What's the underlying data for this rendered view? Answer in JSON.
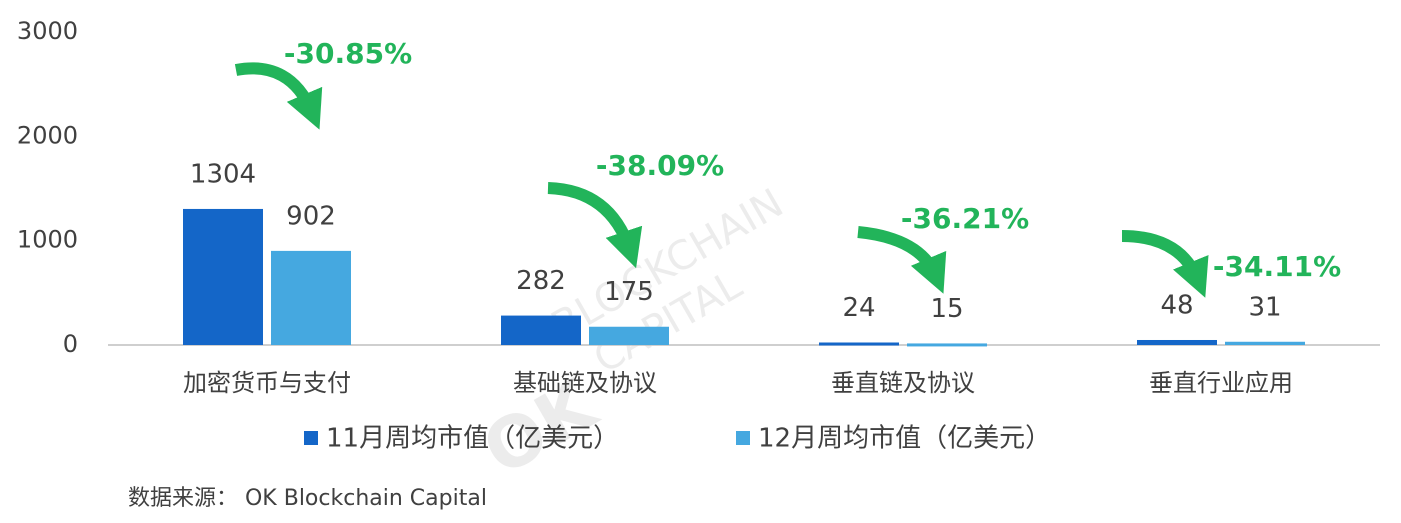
{
  "chart_data": {
    "type": "bar",
    "categories": [
      "加密货币与支付",
      "基础链及协议",
      "垂直链及协议",
      "垂直行业应用"
    ],
    "series": [
      {
        "name": "11月周均市值（亿美元）",
        "color": "#1466c8",
        "values": [
          1304,
          282,
          24,
          48
        ]
      },
      {
        "name": "12月周均市值（亿美元）",
        "color": "#45a8e0",
        "values": [
          902,
          175,
          15,
          31
        ]
      }
    ],
    "change_labels": [
      "-30.85%",
      "-38.09%",
      "-36.21%",
      "-34.11%"
    ],
    "change_color": "#22b45a",
    "ylim": [
      0,
      3000
    ],
    "yticks": [
      0,
      1000,
      2000,
      3000
    ],
    "grid": false,
    "legend": "bottom",
    "watermark": [
      "OK",
      "BLOCKCHAIN",
      "CAPITAL"
    ],
    "source": "数据来源：  OK Blockchain Capital"
  }
}
